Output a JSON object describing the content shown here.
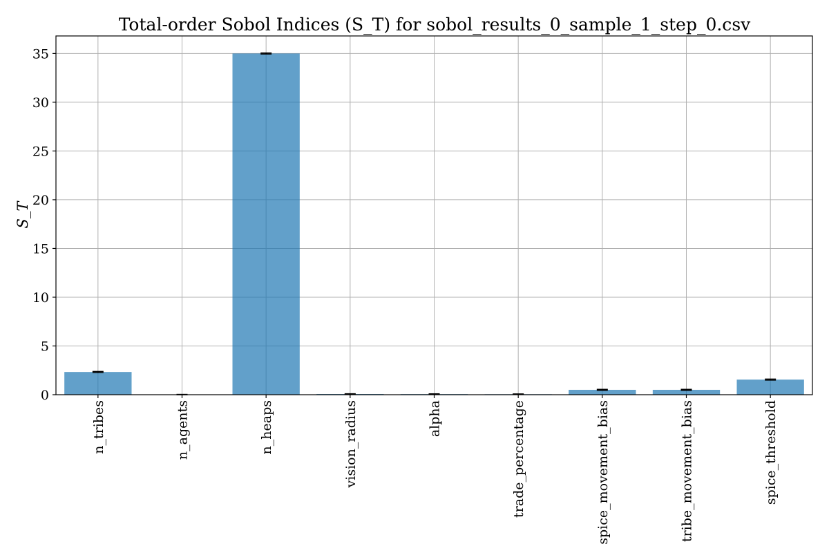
{
  "chart_data": {
    "type": "bar",
    "title": "Total-order Sobol Indices (S_T) for sobol_results_0_sample_1_step_0.csv",
    "ylabel": "S_T",
    "xlabel": "",
    "categories": [
      "n_tribes",
      "n_agents",
      "n_heaps",
      "vision_radius",
      "alpha",
      "trade_percentage",
      "spice_movement_bias",
      "tribe_movement_bias",
      "spice_threshold"
    ],
    "values": [
      2.33,
      0.0,
      35.0,
      0.07,
      0.06,
      0.05,
      0.5,
      0.5,
      1.55
    ],
    "errors": [
      0.05,
      0.03,
      0.05,
      0.03,
      0.03,
      0.03,
      0.05,
      0.05,
      0.05
    ],
    "ylim": [
      0,
      36.8
    ],
    "yticks": [
      0,
      5,
      10,
      15,
      20,
      25,
      30,
      35
    ],
    "grid": true,
    "bar_color": "#1f77b4",
    "legend": "none"
  }
}
